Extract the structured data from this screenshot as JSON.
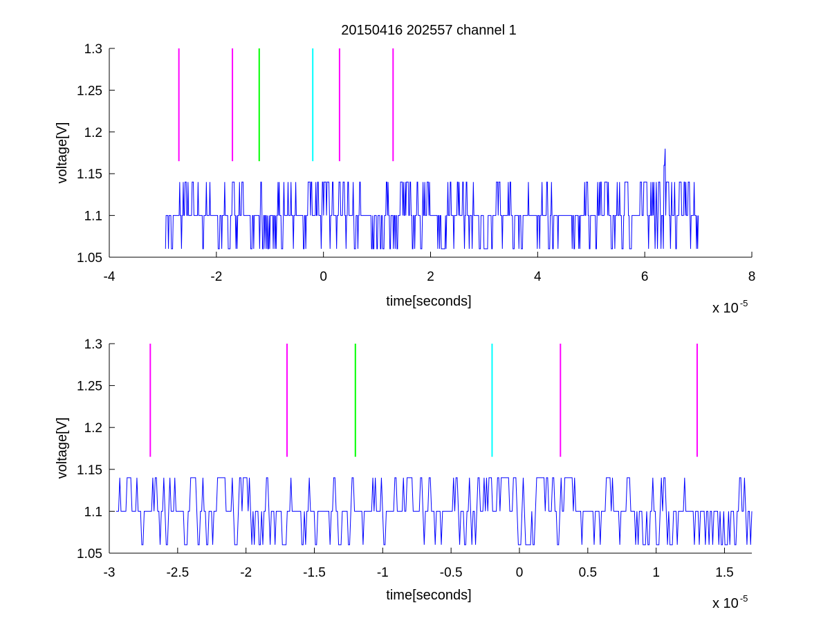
{
  "chart_data": [
    {
      "type": "line",
      "title": "20150416 202557 channel 1",
      "xlabel": "time[seconds]",
      "ylabel": "voltage[V]",
      "x_multiplier_label": "x 10",
      "x_multiplier_exponent": "-5",
      "xlim": [
        -4,
        8
      ],
      "ylim": [
        1.05,
        1.3
      ],
      "xticks": [
        -4,
        -2,
        0,
        2,
        4,
        6,
        8
      ],
      "xtick_labels": [
        "-4",
        "-2",
        "0",
        "2",
        "4",
        "6",
        "8"
      ],
      "yticks": [
        1.05,
        1.1,
        1.15,
        1.2,
        1.25,
        1.3
      ],
      "ytick_labels": [
        "1.05",
        "1.1",
        "1.15",
        "1.2",
        "1.25",
        "1.3"
      ],
      "grid": false,
      "markers": [
        {
          "x": -2.7,
          "y0": 1.165,
          "y1": 1.3,
          "color": "#ff00ff"
        },
        {
          "x": -1.7,
          "y0": 1.165,
          "y1": 1.3,
          "color": "#ff00ff"
        },
        {
          "x": -1.2,
          "y0": 1.165,
          "y1": 1.3,
          "color": "#00ff00"
        },
        {
          "x": -0.2,
          "y0": 1.165,
          "y1": 1.3,
          "color": "#00ffff"
        },
        {
          "x": 0.3,
          "y0": 1.165,
          "y1": 1.3,
          "color": "#ff00ff"
        },
        {
          "x": 1.3,
          "y0": 1.165,
          "y1": 1.3,
          "color": "#ff00ff"
        }
      ],
      "series": [
        {
          "color": "#0000ff",
          "x_start": -2.95,
          "x_end": 7.0,
          "base_value": 1.1,
          "levels": [
            1.06,
            1.1,
            1.14
          ],
          "spikes": [
            {
              "x": 6.38,
              "y": 1.18
            },
            {
              "x": 6.36,
              "y": 1.16
            }
          ]
        }
      ]
    },
    {
      "type": "line",
      "title": "",
      "xlabel": "time[seconds]",
      "ylabel": "voltage[V]",
      "x_multiplier_label": "x 10",
      "x_multiplier_exponent": "-5",
      "xlim": [
        -3,
        1.7
      ],
      "ylim": [
        1.05,
        1.3
      ],
      "xticks": [
        -3,
        -2.5,
        -2,
        -1.5,
        -1,
        -0.5,
        0,
        0.5,
        1,
        1.5
      ],
      "xtick_labels": [
        "-3",
        "-2.5",
        "-2",
        "-1.5",
        "-1",
        "-0.5",
        "0",
        "0.5",
        "1",
        "1.5"
      ],
      "yticks": [
        1.05,
        1.1,
        1.15,
        1.2,
        1.25,
        1.3
      ],
      "ytick_labels": [
        "1.05",
        "1.1",
        "1.15",
        "1.2",
        "1.25",
        "1.3"
      ],
      "grid": false,
      "markers": [
        {
          "x": -2.7,
          "y0": 1.165,
          "y1": 1.3,
          "color": "#ff00ff"
        },
        {
          "x": -1.7,
          "y0": 1.165,
          "y1": 1.3,
          "color": "#ff00ff"
        },
        {
          "x": -1.2,
          "y0": 1.165,
          "y1": 1.3,
          "color": "#00ff00"
        },
        {
          "x": -0.2,
          "y0": 1.165,
          "y1": 1.3,
          "color": "#00ffff"
        },
        {
          "x": 0.3,
          "y0": 1.165,
          "y1": 1.3,
          "color": "#ff00ff"
        },
        {
          "x": 1.3,
          "y0": 1.165,
          "y1": 1.3,
          "color": "#ff00ff"
        }
      ],
      "series": [
        {
          "color": "#0000ff",
          "x_start": -2.95,
          "x_end": 1.7,
          "base_value": 1.1,
          "levels": [
            1.06,
            1.1,
            1.14
          ],
          "spikes": []
        }
      ]
    }
  ]
}
